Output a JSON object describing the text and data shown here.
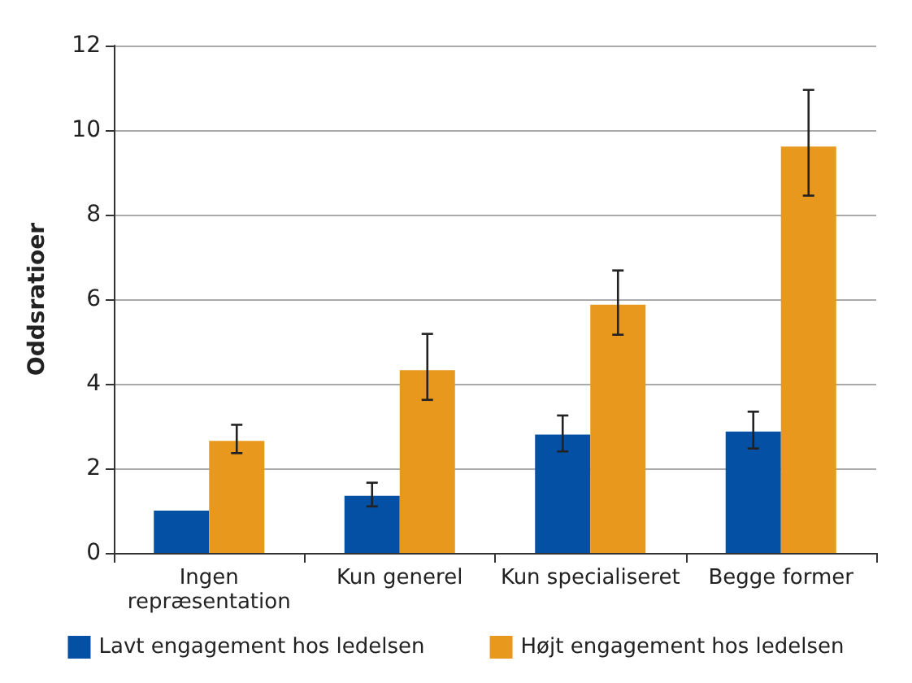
{
  "chart_data": {
    "type": "bar",
    "ylabel": "Oddsratioer",
    "categories": [
      "Ingen\nrepræsentation",
      "Kun generel",
      "Kun specialiseret",
      "Begge former"
    ],
    "series": [
      {
        "name": "Lavt engagement hos ledelsen",
        "color": "#0450a4",
        "values": [
          1.0,
          1.35,
          2.8,
          2.87
        ],
        "errors": [
          null,
          [
            1.1,
            1.66
          ],
          [
            2.4,
            3.25
          ],
          [
            2.47,
            3.34
          ]
        ]
      },
      {
        "name": "Højt engagement hos ledelsen",
        "color": "#e8981c",
        "values": [
          2.65,
          4.32,
          5.87,
          9.61
        ],
        "errors": [
          [
            2.36,
            3.03
          ],
          [
            3.62,
            5.18
          ],
          [
            5.16,
            6.68
          ],
          [
            8.45,
            10.95
          ]
        ]
      }
    ],
    "ylim": [
      0,
      12
    ],
    "yticks": [
      0,
      2,
      4,
      6,
      8,
      10,
      12
    ],
    "grid": "y",
    "legend": "bottom"
  }
}
